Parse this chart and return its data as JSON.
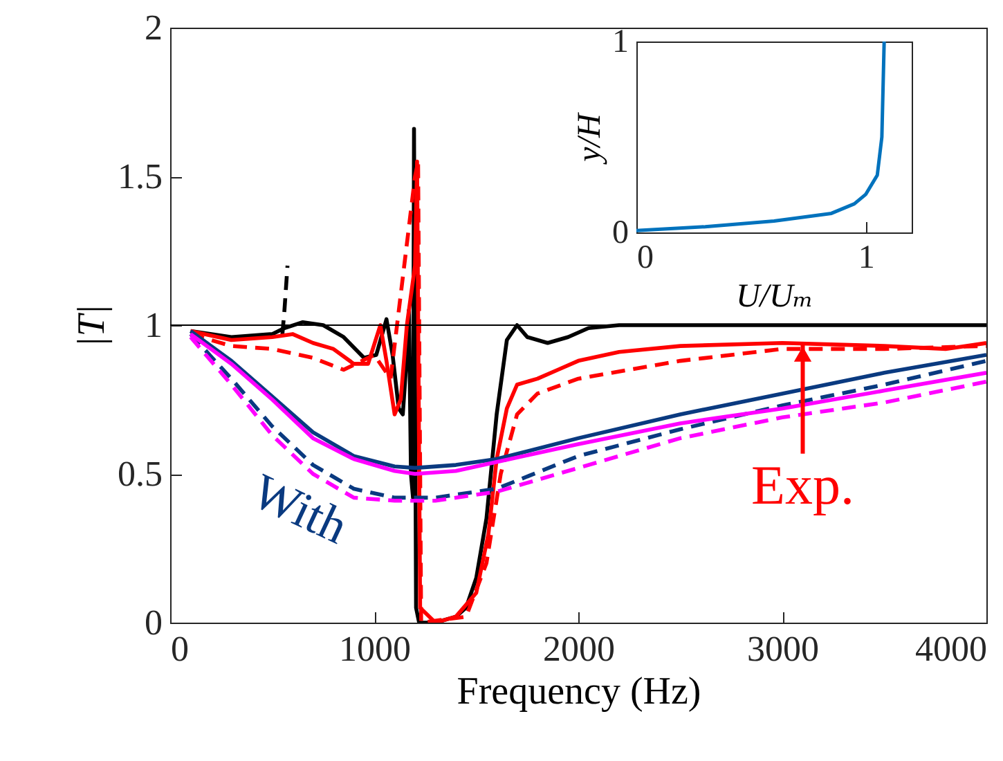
{
  "chart_data": [
    {
      "type": "line",
      "xlabel": "Frequency (Hz)",
      "ylabel": "|T|",
      "xlim": [
        0,
        4000
      ],
      "ylim": [
        0,
        2
      ],
      "xticks": [
        0,
        1000,
        2000,
        3000,
        4000
      ],
      "yticks": [
        0,
        0.5,
        1,
        1.5,
        2
      ],
      "grid": false,
      "marker": "none",
      "series": [
        {
          "color": "#000000",
          "line_style": "solid",
          "x": [
            100,
            300,
            500,
            560,
            650,
            750,
            850,
            950,
            1010,
            1060,
            1090,
            1120,
            1140,
            1160,
            1170,
            1180,
            1190,
            1195,
            1205,
            1220,
            1300,
            1400,
            1450,
            1500,
            1550,
            1600,
            1650,
            1700,
            1750,
            1850,
            1950,
            2050,
            2200,
            2500,
            3000,
            3500,
            4000
          ],
          "values": [
            0.98,
            0.96,
            0.97,
            0.99,
            1.01,
            1.0,
            0.96,
            0.89,
            0.9,
            1.02,
            0.9,
            0.72,
            0.7,
            0.9,
            1.05,
            0.5,
            0.42,
            1.66,
            0.05,
            0.0,
            0.0,
            0.02,
            0.05,
            0.15,
            0.35,
            0.7,
            0.95,
            1.0,
            0.96,
            0.94,
            0.96,
            0.99,
            1.0,
            1.0,
            1.0,
            1.0,
            1.0
          ]
        },
        {
          "color": "#000000",
          "line_style": "dashed",
          "x": [
            550,
            560,
            575
          ],
          "values": [
            0.97,
            1.05,
            1.2
          ]
        },
        {
          "color": "#ff0000",
          "line_style": "solid",
          "x": [
            100,
            300,
            500,
            600,
            700,
            800,
            900,
            970,
            1030,
            1060,
            1100,
            1130,
            1160,
            1200,
            1210,
            1225,
            1300,
            1400,
            1500,
            1560,
            1600,
            1650,
            1700,
            1800,
            1900,
            2000,
            2200,
            2500,
            3000,
            3500,
            3800,
            4000
          ],
          "values": [
            0.98,
            0.95,
            0.96,
            0.97,
            0.94,
            0.92,
            0.87,
            0.87,
            1.0,
            0.88,
            0.7,
            0.75,
            1.0,
            1.2,
            1.55,
            0.05,
            0.0,
            0.02,
            0.1,
            0.3,
            0.55,
            0.72,
            0.8,
            0.82,
            0.85,
            0.88,
            0.91,
            0.93,
            0.94,
            0.93,
            0.92,
            0.94
          ]
        },
        {
          "color": "#ff0000",
          "line_style": "dashed",
          "x": [
            100,
            300,
            500,
            700,
            850,
            1000,
            1080,
            1200,
            1215,
            1230,
            1450,
            1550,
            1620,
            1700,
            1800,
            2000,
            2500,
            3000,
            3500,
            4000
          ],
          "values": [
            0.97,
            0.93,
            0.92,
            0.89,
            0.85,
            0.9,
            0.82,
            1.5,
            1.55,
            0.0,
            0.02,
            0.2,
            0.5,
            0.7,
            0.77,
            0.82,
            0.88,
            0.92,
            0.92,
            0.93
          ]
        },
        {
          "name": "With",
          "color": "#0a3a80",
          "line_style": "solid",
          "x": [
            100,
            300,
            500,
            700,
            900,
            1100,
            1200,
            1400,
            1600,
            2000,
            2500,
            3000,
            3500,
            4000
          ],
          "values": [
            0.98,
            0.88,
            0.76,
            0.64,
            0.56,
            0.525,
            0.52,
            0.53,
            0.55,
            0.62,
            0.7,
            0.77,
            0.84,
            0.9
          ]
        },
        {
          "color": "#0a3a80",
          "line_style": "dashed",
          "x": [
            100,
            300,
            500,
            700,
            900,
            1100,
            1300,
            1600,
            2000,
            2500,
            3000,
            3500,
            4000
          ],
          "values": [
            0.97,
            0.82,
            0.66,
            0.53,
            0.45,
            0.42,
            0.42,
            0.45,
            0.56,
            0.65,
            0.73,
            0.8,
            0.88
          ]
        },
        {
          "color": "#ff00ff",
          "line_style": "solid",
          "x": [
            100,
            300,
            500,
            700,
            900,
            1100,
            1200,
            1400,
            1600,
            2000,
            2500,
            3000,
            3500,
            4000
          ],
          "values": [
            0.97,
            0.87,
            0.75,
            0.62,
            0.55,
            0.51,
            0.5,
            0.51,
            0.54,
            0.6,
            0.67,
            0.72,
            0.78,
            0.84
          ]
        },
        {
          "color": "#ff00ff",
          "line_style": "dashed",
          "x": [
            100,
            300,
            500,
            700,
            900,
            1100,
            1300,
            1600,
            2000,
            2500,
            3000,
            3500,
            4000
          ],
          "values": [
            0.96,
            0.8,
            0.63,
            0.5,
            0.42,
            0.41,
            0.41,
            0.44,
            0.52,
            0.62,
            0.69,
            0.74,
            0.81
          ]
        }
      ],
      "ref_lines": [
        {
          "axis": "y",
          "value": 1,
          "color": "#000000"
        }
      ],
      "annotations": [
        {
          "text": "Exp.",
          "x": 3100,
          "y": 0.94
        }
      ]
    },
    {
      "type": "line",
      "xlabel": "U/Uₘ",
      "ylabel": "y/H",
      "xlim": [
        0,
        1.2
      ],
      "ylim": [
        0,
        1
      ],
      "xticks": [
        0,
        1
      ],
      "yticks": [
        0,
        1
      ],
      "grid": false,
      "marker": "none",
      "series": [
        {
          "color": "#0072bd",
          "x": [
            0,
            0.3,
            0.6,
            0.85,
            0.95,
            1.0,
            1.05,
            1.07,
            1.08
          ],
          "values": [
            0.01,
            0.03,
            0.06,
            0.1,
            0.15,
            0.2,
            0.3,
            0.5,
            1.0
          ]
        }
      ]
    }
  ]
}
